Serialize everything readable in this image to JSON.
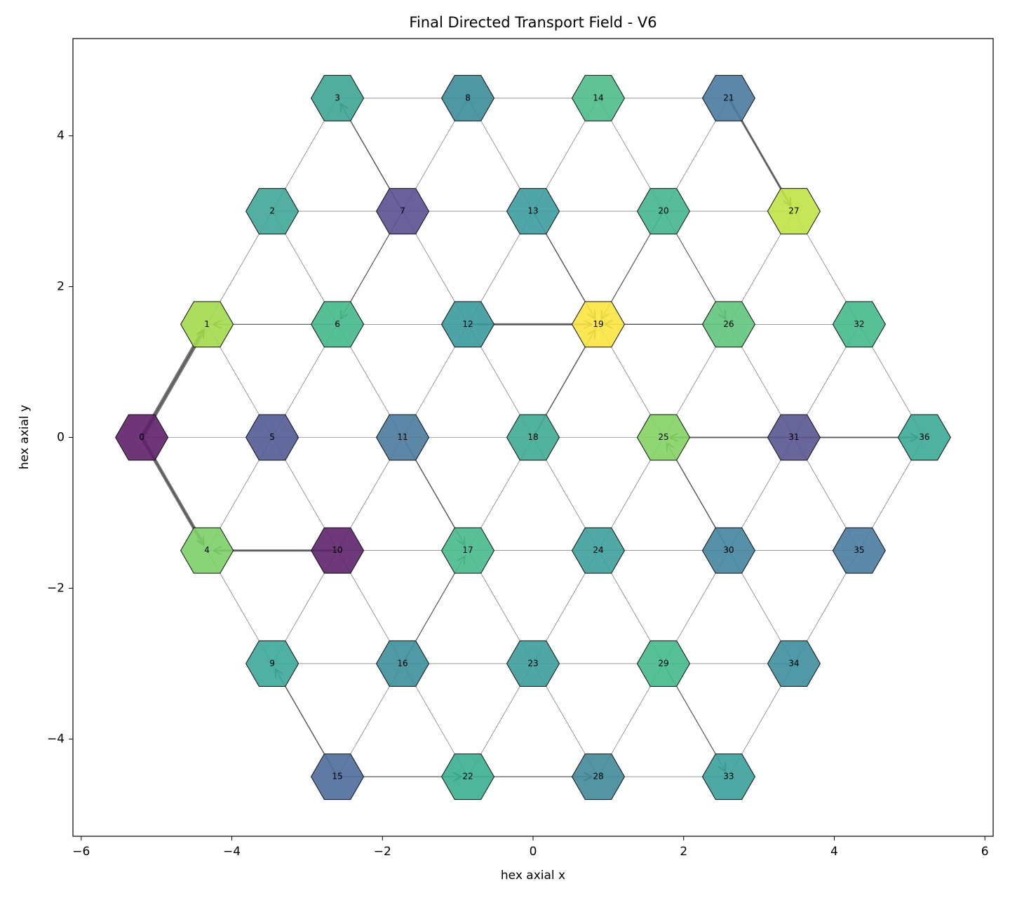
{
  "chart_data": {
    "type": "hexgraph",
    "title": "Final Directed Transport Field - V6",
    "xlabel": "hex axial x",
    "ylabel": "hex axial y",
    "xlim": [
      -6.11,
      6.11
    ],
    "ylim": [
      -5.29,
      5.29
    ],
    "xticks": [
      {
        "value": -6,
        "label": "−6"
      },
      {
        "value": -4,
        "label": "−4"
      },
      {
        "value": -2,
        "label": "−2"
      },
      0,
      2,
      4,
      6
    ],
    "yticks": [
      {
        "value": -4,
        "label": "−4"
      },
      {
        "value": -2,
        "label": "−2"
      },
      0,
      2,
      4
    ],
    "nodes": [
      {
        "label": 0,
        "x": -5.196,
        "y": 0,
        "color": "#5e1f6a"
      },
      {
        "label": 1,
        "x": -4.33,
        "y": 1.5,
        "color": "#a3d94d"
      },
      {
        "label": 2,
        "x": -3.464,
        "y": 3,
        "color": "#3fa697"
      },
      {
        "label": 3,
        "x": -2.598,
        "y": 4.5,
        "color": "#3ea595"
      },
      {
        "label": 4,
        "x": -4.33,
        "y": -1.5,
        "color": "#7ccf68"
      },
      {
        "label": 5,
        "x": -3.464,
        "y": 0,
        "color": "#525a93"
      },
      {
        "label": 6,
        "x": -2.598,
        "y": 1.5,
        "color": "#45b88a"
      },
      {
        "label": 7,
        "x": -1.732,
        "y": 3,
        "color": "#5b5192"
      },
      {
        "label": 8,
        "x": -0.866,
        "y": 4.5,
        "color": "#3b8c99"
      },
      {
        "label": 9,
        "x": -3.464,
        "y": -3,
        "color": "#3ca799"
      },
      {
        "label": 10,
        "x": -2.598,
        "y": -1.5,
        "color": "#5d236c"
      },
      {
        "label": 11,
        "x": -1.732,
        "y": 0,
        "color": "#4a7a9c"
      },
      {
        "label": 12,
        "x": -0.866,
        "y": 1.5,
        "color": "#3a999c"
      },
      {
        "label": 13,
        "x": 0,
        "y": 3,
        "color": "#3c9b9e"
      },
      {
        "label": 14,
        "x": 0.866,
        "y": 4.5,
        "color": "#4ebd8b"
      },
      {
        "label": 15,
        "x": -2.598,
        "y": -4.5,
        "color": "#4f6b9c"
      },
      {
        "label": 16,
        "x": -1.732,
        "y": -3,
        "color": "#3c8f9a"
      },
      {
        "label": 17,
        "x": -0.866,
        "y": -1.5,
        "color": "#47b98c"
      },
      {
        "label": 18,
        "x": 0,
        "y": 0,
        "color": "#3eaa93"
      },
      {
        "label": 19,
        "x": 0.866,
        "y": 1.5,
        "color": "#fbe441"
      },
      {
        "label": 20,
        "x": 1.732,
        "y": 3,
        "color": "#44b58e"
      },
      {
        "label": 21,
        "x": 2.598,
        "y": 4.5,
        "color": "#4a7a9e"
      },
      {
        "label": 22,
        "x": -0.866,
        "y": -4.5,
        "color": "#3aae90"
      },
      {
        "label": 23,
        "x": 0,
        "y": -3,
        "color": "#3c9c9a"
      },
      {
        "label": 24,
        "x": 0.866,
        "y": -1.5,
        "color": "#3e9e9a"
      },
      {
        "label": 25,
        "x": 1.732,
        "y": 0,
        "color": "#84d264"
      },
      {
        "label": 26,
        "x": 2.598,
        "y": 1.5,
        "color": "#60c47c"
      },
      {
        "label": 27,
        "x": 3.464,
        "y": 3,
        "color": "#c1e247"
      },
      {
        "label": 28,
        "x": 0.866,
        "y": -4.5,
        "color": "#438999"
      },
      {
        "label": 29,
        "x": 1.732,
        "y": -3,
        "color": "#46b98c"
      },
      {
        "label": 30,
        "x": 2.598,
        "y": -1.5,
        "color": "#4585a0"
      },
      {
        "label": 31,
        "x": 3.464,
        "y": 0,
        "color": "#585590"
      },
      {
        "label": 32,
        "x": 4.33,
        "y": 1.5,
        "color": "#46b98b"
      },
      {
        "label": 33,
        "x": 2.598,
        "y": -4.5,
        "color": "#3ba09b"
      },
      {
        "label": 34,
        "x": 3.464,
        "y": -3,
        "color": "#3e8e9c"
      },
      {
        "label": 35,
        "x": 4.33,
        "y": -1.5,
        "color": "#4a7ba0"
      },
      {
        "label": 36,
        "x": 5.196,
        "y": 0,
        "color": "#3ca896"
      }
    ],
    "edges": [
      {
        "from": 0,
        "to": 1,
        "width": 6
      },
      {
        "from": 0,
        "to": 4,
        "width": 5
      },
      {
        "from": 10,
        "to": 4,
        "width": 3
      },
      {
        "from": 21,
        "to": 27,
        "width": 3
      },
      {
        "from": 12,
        "to": 19,
        "width": 3
      },
      {
        "from": 31,
        "to": 36,
        "width": 2
      },
      {
        "from": 31,
        "to": 25,
        "width": 2
      },
      {
        "from": 13,
        "to": 19,
        "width": 1.5
      },
      {
        "from": 18,
        "to": 19,
        "width": 1.5
      },
      {
        "from": 26,
        "to": 19,
        "width": 1.5
      },
      {
        "from": 20,
        "to": 19,
        "width": 1.2
      },
      {
        "from": 7,
        "to": 3,
        "width": 1.5
      },
      {
        "from": 11,
        "to": 17,
        "width": 1.5
      },
      {
        "from": 30,
        "to": 25,
        "width": 1.5
      },
      {
        "from": 15,
        "to": 9,
        "width": 1.5
      },
      {
        "from": 6,
        "to": 1,
        "width": 1.2
      },
      {
        "from": 7,
        "to": 6,
        "width": 1.2
      },
      {
        "from": 16,
        "to": 17,
        "width": 1.2
      },
      {
        "from": 15,
        "to": 22,
        "width": 1.2
      },
      {
        "from": 22,
        "to": 28,
        "width": 1.2
      },
      {
        "from": 29,
        "to": 33,
        "width": 1.2
      },
      {
        "from": 20,
        "to": 26,
        "width": 1
      }
    ]
  }
}
